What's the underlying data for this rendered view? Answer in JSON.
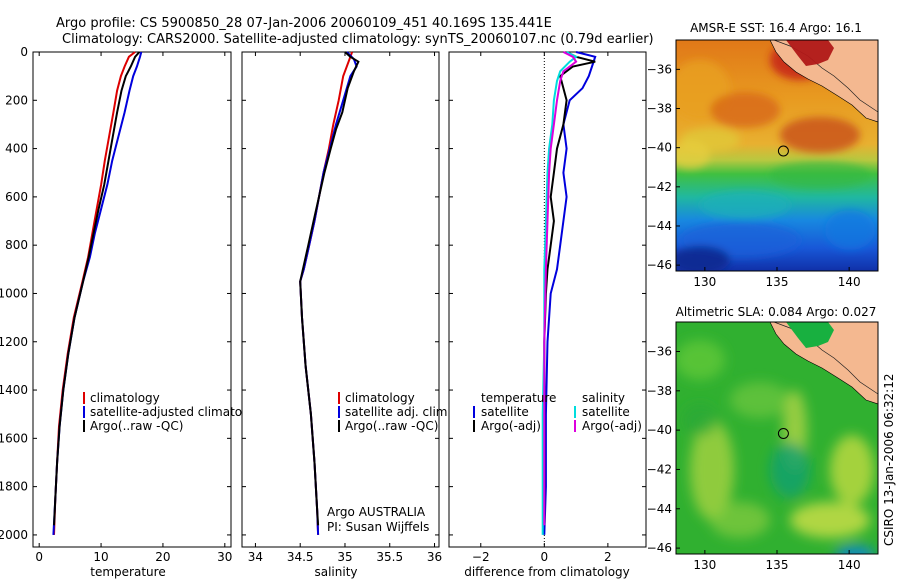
{
  "title_line1": "Argo profile: CS 5900850_28 07-Jan-2006 20060109_451 40.169S 135.441E",
  "title_line2": "Climatology: CARS2000. Satellite-adjusted climatology: synTS_20060107.nc (0.79d earlier)",
  "side_label": "CSIRO 13-Jan-2006 06:32:12",
  "attribution": {
    "line1": "Argo AUSTRALIA",
    "line2": "PI: Susan Wijffels"
  },
  "colors": {
    "climatology": "#dd0000",
    "satellite": "#0000dd",
    "argo": "#000000",
    "cyan": "#00dddd",
    "magenta": "#dd00dd",
    "land": "#f4b890"
  },
  "chart_data": [
    {
      "type": "line",
      "xlabel": "temperature",
      "ylabel": "",
      "xlim": [
        -1,
        31
      ],
      "ylim": [
        2050,
        0
      ],
      "xticks": [
        0,
        10,
        20,
        30
      ],
      "yticks": [
        0,
        200,
        400,
        600,
        800,
        1000,
        1200,
        1400,
        1600,
        1800,
        2000
      ],
      "legend": [
        "climatology",
        "satellite-adjusted climatolog",
        "Argo(..raw -QC)"
      ],
      "series": [
        {
          "name": "climatology",
          "color": "#dd0000",
          "points": [
            [
              15.5,
              0
            ],
            [
              14.5,
              20
            ],
            [
              13.8,
              60
            ],
            [
              13.2,
              100
            ],
            [
              12.6,
              160
            ],
            [
              12.0,
              250
            ],
            [
              11.3,
              350
            ],
            [
              10.6,
              450
            ],
            [
              10.0,
              550
            ],
            [
              9.3,
              650
            ],
            [
              8.6,
              750
            ],
            [
              7.9,
              850
            ],
            [
              7.0,
              950
            ],
            [
              5.6,
              1100
            ],
            [
              4.6,
              1250
            ],
            [
              3.8,
              1400
            ],
            [
              3.2,
              1550
            ],
            [
              2.9,
              1700
            ],
            [
              2.6,
              1850
            ],
            [
              2.4,
              2000
            ]
          ]
        },
        {
          "name": "satellite-adjusted climatolog",
          "color": "#0000dd",
          "points": [
            [
              16.5,
              0
            ],
            [
              16.3,
              20
            ],
            [
              15.8,
              60
            ],
            [
              15.2,
              100
            ],
            [
              14.6,
              160
            ],
            [
              13.8,
              250
            ],
            [
              12.8,
              350
            ],
            [
              11.8,
              450
            ],
            [
              11.0,
              550
            ],
            [
              10.0,
              650
            ],
            [
              9.0,
              750
            ],
            [
              8.2,
              850
            ],
            [
              7.1,
              950
            ],
            [
              5.7,
              1100
            ],
            [
              4.7,
              1250
            ],
            [
              3.9,
              1400
            ],
            [
              3.3,
              1550
            ],
            [
              2.9,
              1700
            ],
            [
              2.6,
              1850
            ],
            [
              2.3,
              2000
            ]
          ]
        },
        {
          "name": "Argo(..raw -QC)",
          "color": "#000000",
          "points": [
            [
              16.2,
              0
            ],
            [
              15.5,
              20
            ],
            [
              14.8,
              60
            ],
            [
              14.0,
              100
            ],
            [
              13.3,
              160
            ],
            [
              12.6,
              250
            ],
            [
              11.9,
              350
            ],
            [
              11.2,
              450
            ],
            [
              10.5,
              550
            ],
            [
              9.6,
              650
            ],
            [
              8.8,
              750
            ],
            [
              8.0,
              850
            ],
            [
              7.1,
              950
            ],
            [
              5.7,
              1100
            ],
            [
              4.7,
              1250
            ],
            [
              3.9,
              1400
            ],
            [
              3.3,
              1550
            ],
            [
              2.9,
              1700
            ],
            [
              2.6,
              1850
            ],
            [
              2.4,
              1960
            ]
          ]
        }
      ]
    },
    {
      "type": "line",
      "xlabel": "salinity",
      "ylabel": "",
      "xlim": [
        33.85,
        36.05
      ],
      "ylim": [
        2050,
        0
      ],
      "xticks": [
        34,
        34.5,
        35,
        35.5,
        36
      ],
      "legend": [
        "climatology",
        "satellite adj. clim.",
        "Argo(..raw -QC)"
      ],
      "series": [
        {
          "name": "climatology",
          "color": "#dd0000",
          "points": [
            [
              35.08,
              0
            ],
            [
              35.05,
              30
            ],
            [
              34.98,
              100
            ],
            [
              34.93,
              200
            ],
            [
              34.87,
              300
            ],
            [
              34.82,
              400
            ],
            [
              34.76,
              500
            ],
            [
              34.71,
              600
            ],
            [
              34.66,
              700
            ],
            [
              34.6,
              800
            ],
            [
              34.54,
              900
            ],
            [
              34.5,
              950
            ],
            [
              34.52,
              1100
            ],
            [
              34.56,
              1300
            ],
            [
              34.62,
              1500
            ],
            [
              34.66,
              1700
            ],
            [
              34.69,
              1900
            ],
            [
              34.7,
              2000
            ]
          ]
        },
        {
          "name": "satellite adj. clim.",
          "color": "#0000dd",
          "points": [
            [
              35.02,
              0
            ],
            [
              35.1,
              30
            ],
            [
              35.13,
              60
            ],
            [
              35.06,
              100
            ],
            [
              34.98,
              200
            ],
            [
              34.9,
              300
            ],
            [
              34.83,
              400
            ],
            [
              34.76,
              500
            ],
            [
              34.71,
              600
            ],
            [
              34.66,
              700
            ],
            [
              34.6,
              800
            ],
            [
              34.54,
              900
            ],
            [
              34.5,
              950
            ],
            [
              34.52,
              1100
            ],
            [
              34.56,
              1300
            ],
            [
              34.62,
              1500
            ],
            [
              34.66,
              1700
            ],
            [
              34.69,
              1900
            ],
            [
              34.7,
              2000
            ]
          ]
        },
        {
          "name": "Argo(..raw -QC)",
          "color": "#000000",
          "points": [
            [
              35.0,
              0
            ],
            [
              35.06,
              20
            ],
            [
              35.15,
              40
            ],
            [
              35.1,
              80
            ],
            [
              35.03,
              150
            ],
            [
              34.97,
              250
            ],
            [
              34.9,
              320
            ],
            [
              34.84,
              400
            ],
            [
              34.77,
              500
            ],
            [
              34.71,
              600
            ],
            [
              34.65,
              700
            ],
            [
              34.59,
              800
            ],
            [
              34.53,
              900
            ],
            [
              34.5,
              950
            ],
            [
              34.52,
              1100
            ],
            [
              34.56,
              1300
            ],
            [
              34.62,
              1500
            ],
            [
              34.66,
              1700
            ],
            [
              34.69,
              1900
            ],
            [
              34.7,
              1960
            ]
          ]
        }
      ]
    },
    {
      "type": "line",
      "xlabel": "difference from climatology",
      "ylabel": "",
      "xlim": [
        -3,
        3.2
      ],
      "ylim": [
        2050,
        0
      ],
      "xticks": [
        -2,
        0,
        2
      ],
      "legend": [
        "temperature",
        "satellite",
        "Argo(-adj)",
        "salinity",
        "satellite",
        "Argo(-adj)"
      ],
      "series": [
        {
          "name": "satellite",
          "group": "temperature",
          "color": "#0000dd",
          "points": [
            [
              1.0,
              0
            ],
            [
              1.6,
              20
            ],
            [
              1.5,
              60
            ],
            [
              1.4,
              100
            ],
            [
              1.2,
              150
            ],
            [
              0.8,
              200
            ],
            [
              0.6,
              300
            ],
            [
              0.7,
              400
            ],
            [
              0.6,
              500
            ],
            [
              0.7,
              600
            ],
            [
              0.6,
              700
            ],
            [
              0.5,
              800
            ],
            [
              0.4,
              900
            ],
            [
              0.2,
              1000
            ],
            [
              0.1,
              1200
            ],
            [
              0.05,
              1500
            ],
            [
              0.05,
              1800
            ],
            [
              0.0,
              2000
            ]
          ]
        },
        {
          "name": "Argo(-adj)",
          "group": "temperature",
          "color": "#000000",
          "points": [
            [
              0.7,
              0
            ],
            [
              1.0,
              20
            ],
            [
              1.6,
              40
            ],
            [
              0.9,
              60
            ],
            [
              0.5,
              100
            ],
            [
              0.6,
              150
            ],
            [
              0.7,
              200
            ],
            [
              0.6,
              300
            ],
            [
              0.4,
              400
            ],
            [
              0.3,
              500
            ],
            [
              0.2,
              600
            ],
            [
              0.3,
              700
            ],
            [
              0.2,
              800
            ],
            [
              0.1,
              900
            ],
            [
              0.05,
              1000
            ],
            [
              0.0,
              1200
            ],
            [
              0.0,
              1500
            ],
            [
              0.0,
              1800
            ],
            [
              0.0,
              1950
            ]
          ]
        },
        {
          "name": "satellite",
          "group": "salinity",
          "color": "#00dddd",
          "points": [
            [
              0.7,
              0
            ],
            [
              1.0,
              20
            ],
            [
              0.8,
              40
            ],
            [
              0.5,
              80
            ],
            [
              0.4,
              120
            ],
            [
              0.3,
              200
            ],
            [
              0.25,
              300
            ],
            [
              0.15,
              400
            ],
            [
              0.1,
              500
            ],
            [
              0.05,
              700
            ],
            [
              0.0,
              900
            ],
            [
              0.0,
              1200
            ],
            [
              -0.05,
              1500
            ],
            [
              -0.05,
              2000
            ]
          ]
        },
        {
          "name": "Argo(-adj)",
          "group": "salinity",
          "color": "#dd00dd",
          "points": [
            [
              0.6,
              0
            ],
            [
              0.9,
              20
            ],
            [
              1.0,
              40
            ],
            [
              0.6,
              80
            ],
            [
              0.5,
              120
            ],
            [
              0.4,
              200
            ],
            [
              0.3,
              300
            ],
            [
              0.2,
              400
            ],
            [
              0.15,
              500
            ],
            [
              0.1,
              700
            ],
            [
              0.05,
              900
            ],
            [
              0.0,
              1200
            ],
            [
              0.0,
              1500
            ],
            [
              0.0,
              1960
            ]
          ]
        }
      ]
    },
    {
      "type": "heatmap",
      "title": "AMSR-E SST: 16.4 Argo: 16.1",
      "xlim": [
        128,
        142
      ],
      "ylim": [
        -46.3,
        -34.5
      ],
      "xticks": [
        130,
        135,
        140
      ],
      "yticks": [
        -46,
        -44,
        -42,
        -40,
        -38,
        -36
      ],
      "marker": [
        135.441,
        -40.169
      ]
    },
    {
      "type": "heatmap",
      "title": "Altimetric SLA: 0.084 Argo: 0.027",
      "xlim": [
        128,
        142
      ],
      "ylim": [
        -46.3,
        -34.5
      ],
      "xticks": [
        130,
        135,
        140
      ],
      "yticks": [
        -46,
        -44,
        -42,
        -40,
        -38,
        -36
      ],
      "marker": [
        135.441,
        -40.169
      ]
    }
  ]
}
